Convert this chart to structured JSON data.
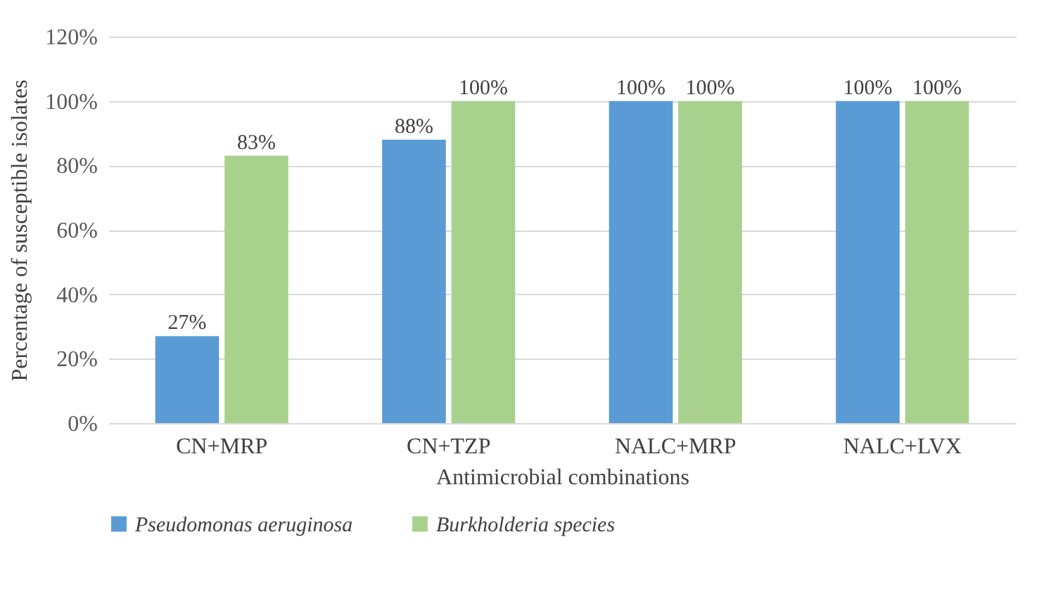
{
  "chart_data": {
    "type": "bar",
    "xlabel": "Antimicrobial combinations",
    "ylabel": "Percentage of susceptible isolates",
    "categories": [
      "CN+MRP",
      "CN+TZP",
      "NALC+MRP",
      "NALC+LVX"
    ],
    "series": [
      {
        "name": "Pseudomonas aeruginosa",
        "color": "#5b9bd5",
        "values": [
          27,
          88,
          100,
          100
        ],
        "value_labels": [
          "27%",
          "88%",
          "100%",
          "100%"
        ]
      },
      {
        "name": "Burkholderia species",
        "color": "#a9d18e",
        "values": [
          83,
          100,
          100,
          100
        ],
        "value_labels": [
          "83%",
          "100%",
          "100%",
          "100%"
        ]
      }
    ],
    "ylim": [
      0,
      120
    ],
    "yticks": [
      {
        "value": 0,
        "label": "0%"
      },
      {
        "value": 20,
        "label": "20%"
      },
      {
        "value": 40,
        "label": "40%"
      },
      {
        "value": 60,
        "label": "60%"
      },
      {
        "value": 80,
        "label": "80%"
      },
      {
        "value": 100,
        "label": "100%"
      },
      {
        "value": 120,
        "label": "120%"
      }
    ],
    "grid": "y",
    "legend": "bottom"
  }
}
